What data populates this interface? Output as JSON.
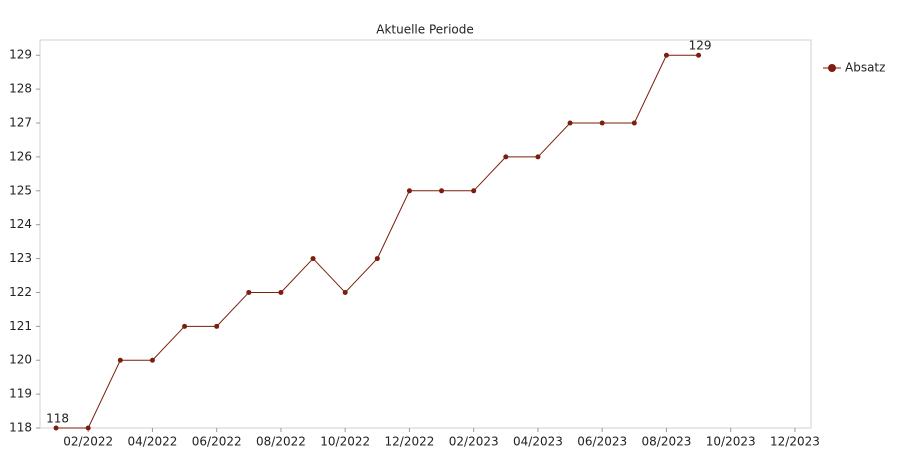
{
  "chart_data": {
    "type": "line",
    "title": "Aktuelle Periode",
    "categories": [
      null,
      "02/2022",
      null,
      "04/2022",
      null,
      "06/2022",
      null,
      "08/2022",
      null,
      "10/2022",
      null,
      "12/2022",
      null,
      "02/2023",
      null,
      "04/2023",
      null,
      "06/2023",
      null,
      "08/2023",
      null,
      "10/2023",
      null,
      "12/2023"
    ],
    "series": [
      {
        "name": "Absatz",
        "color": "#7b1e0c",
        "values": [
          118,
          118,
          120,
          120,
          121,
          121,
          122,
          122,
          123,
          122,
          123,
          125,
          125,
          125,
          126,
          126,
          127,
          127,
          127,
          129,
          129,
          null,
          null,
          null
        ],
        "value_labels": [
          "118",
          null,
          null,
          null,
          null,
          null,
          null,
          null,
          null,
          null,
          null,
          null,
          null,
          null,
          null,
          null,
          null,
          null,
          null,
          null,
          "129",
          null,
          null,
          null
        ]
      }
    ],
    "ylim": [
      118,
      129.45
    ],
    "yticks": [
      118,
      119,
      120,
      121,
      122,
      123,
      124,
      125,
      126,
      127,
      128,
      129
    ],
    "legend": "right"
  }
}
